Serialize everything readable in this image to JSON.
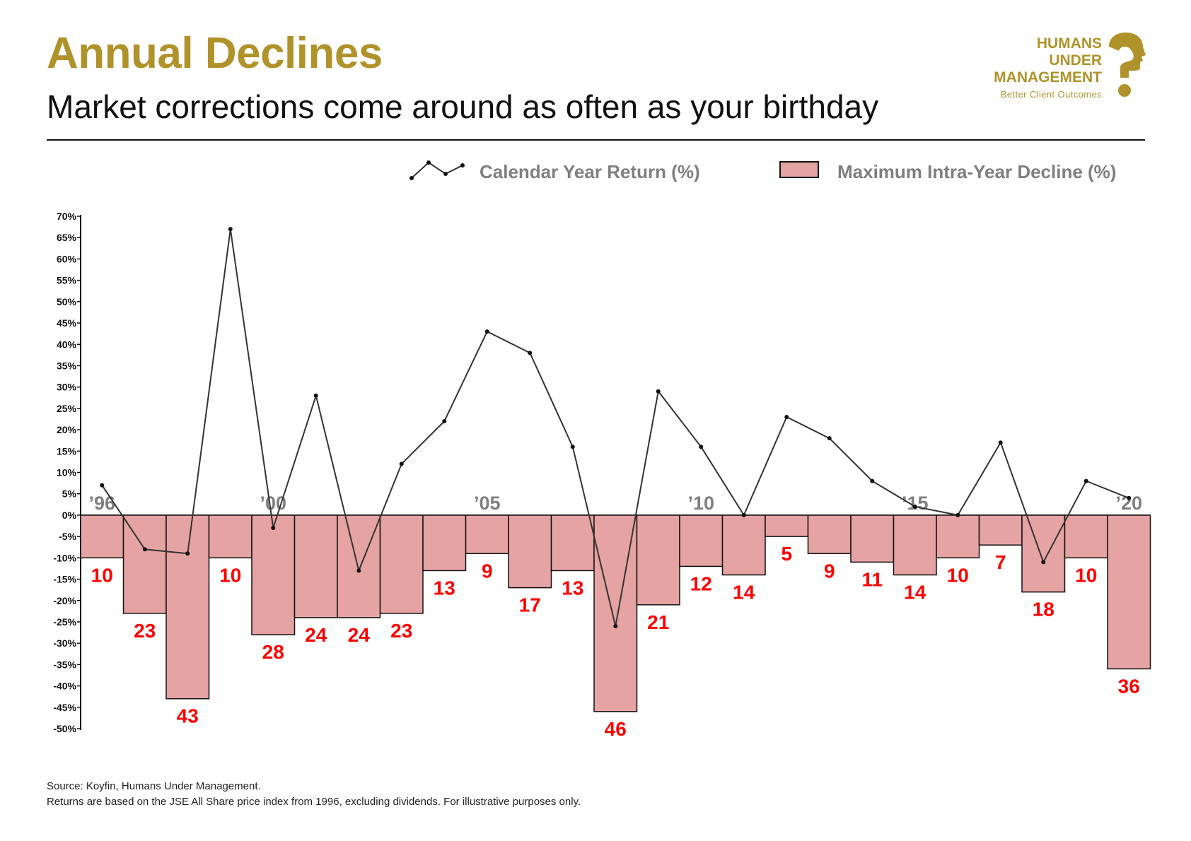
{
  "header": {
    "title": "Annual Declines",
    "subtitle": "Market corrections come around as often as your birthday"
  },
  "logo": {
    "line1": "HUMANS",
    "line2": "UNDER",
    "line3": "MANAGEMENT",
    "tagline": "Better Client Outcomes",
    "mark_icon": "question-mark-head-icon"
  },
  "legend": {
    "line_label": "Calendar Year Return (%)",
    "bar_label": "Maximum Intra-Year Decline (%)"
  },
  "colors": {
    "brand_gold": "#b0922a",
    "bar_fill": "#e6a3a3",
    "bar_stroke": "#111111",
    "bar_label": "#ff0000",
    "line": "#333333",
    "year_tick": "#7f7f7f"
  },
  "chart_data": {
    "type": "bar",
    "x": [
      "1996",
      "1997",
      "1998",
      "1999",
      "2000",
      "2001",
      "2002",
      "2003",
      "2004",
      "2005",
      "2006",
      "2007",
      "2008",
      "2009",
      "2010",
      "2011",
      "2012",
      "2013",
      "2014",
      "2015",
      "2016",
      "2017",
      "2018",
      "2019",
      "2020"
    ],
    "year_tick_labels": [
      {
        "index": 0,
        "label": "’96"
      },
      {
        "index": 4,
        "label": "’00"
      },
      {
        "index": 9,
        "label": "’05"
      },
      {
        "index": 14,
        "label": "’10"
      },
      {
        "index": 19,
        "label": "’15"
      },
      {
        "index": 24,
        "label": "’20"
      }
    ],
    "series": [
      {
        "name": "Maximum Intra-Year Decline (%)",
        "type": "bar",
        "values": [
          -10,
          -23,
          -43,
          -10,
          -28,
          -24,
          -24,
          -23,
          -13,
          -9,
          -17,
          -13,
          -46,
          -21,
          -12,
          -14,
          -5,
          -9,
          -11,
          -14,
          -10,
          -7,
          -18,
          -10,
          -36
        ],
        "data_labels": [
          "10",
          "23",
          "43",
          "10",
          "28",
          "24",
          "24",
          "23",
          "13",
          "9",
          "17",
          "13",
          "46",
          "21",
          "12",
          "14",
          "5",
          "9",
          "11",
          "14",
          "10",
          "7",
          "18",
          "10",
          "36"
        ]
      },
      {
        "name": "Calendar Year Return (%)",
        "type": "line",
        "values": [
          7,
          -8,
          -9,
          67,
          -3,
          28,
          -13,
          12,
          22,
          43,
          38,
          16,
          -26,
          29,
          16,
          0,
          23,
          18,
          8,
          2,
          0,
          17,
          -11,
          8,
          4
        ]
      }
    ],
    "y_ticks": [
      "70%",
      "65%",
      "60%",
      "55%",
      "50%",
      "45%",
      "40%",
      "35%",
      "30%",
      "25%",
      "20%",
      "15%",
      "10%",
      "5%",
      "0%",
      "-5%",
      "-10%",
      "-15%",
      "-20%",
      "-25%",
      "-30%",
      "-35%",
      "-40%",
      "-45%",
      "-50%"
    ],
    "ylim": [
      -50,
      70
    ],
    "grid": false,
    "legend_position": "top-right"
  },
  "footer": {
    "source": "Source: Koyfin, Humans Under Management.",
    "note": "Returns are based on the JSE All Share price index from 1996, excluding dividends. For illustrative purposes only."
  }
}
